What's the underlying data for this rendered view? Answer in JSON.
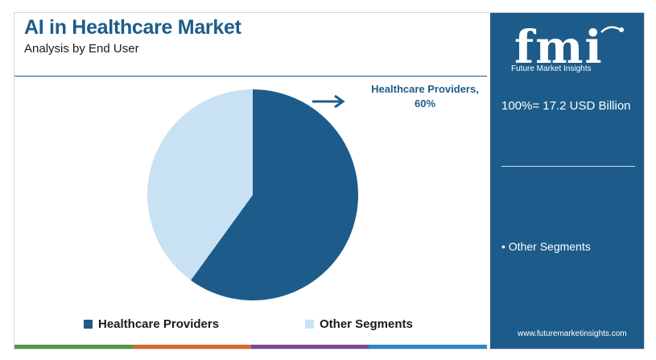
{
  "header": {
    "title": "AI in Healthcare Market",
    "subtitle": "Analysis by End User"
  },
  "chart_data": {
    "type": "pie",
    "categories": [
      "Healthcare Providers",
      "Other Segments"
    ],
    "values": [
      60,
      40
    ],
    "colors": [
      "#1d5c8a",
      "#c9e2f3"
    ],
    "callout": "Healthcare Providers, 60%",
    "legend_position": "bottom"
  },
  "legend": {
    "items": [
      {
        "label": "Healthcare Providers",
        "color": "#1d5c8a"
      },
      {
        "label": "Other Segments",
        "color": "#c9e2f3"
      }
    ]
  },
  "side_panel": {
    "logo_text": "fmi",
    "logo_tagline": "Future Market Insights",
    "total": "100%= 17.2 USD Billion",
    "note": "• Other Segments",
    "website": "www.futuremarketinsights.com"
  },
  "colors": {
    "accent": "#1d5c8a",
    "light": "#c9e2f3",
    "stripes": [
      "#4f9a45",
      "#d9692e",
      "#7a4b9a",
      "#2d86c2"
    ]
  }
}
